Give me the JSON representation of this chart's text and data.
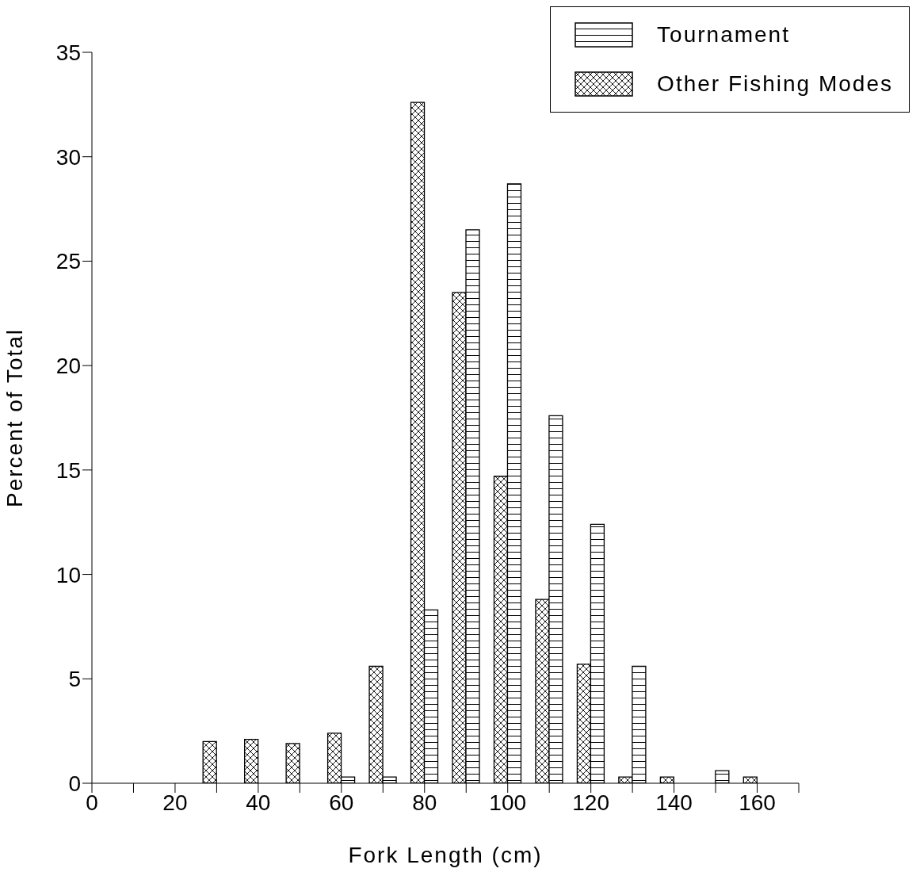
{
  "chart_data": {
    "type": "bar",
    "xlabel": "Fork Length (cm)",
    "ylabel": "Percent of Total",
    "x": [
      30,
      40,
      50,
      60,
      70,
      80,
      90,
      100,
      110,
      120,
      130,
      140,
      150,
      160
    ],
    "series": [
      {
        "name": "Other Fishing Modes",
        "color": "#000000",
        "values": [
          2.0,
          2.1,
          1.9,
          2.4,
          5.6,
          32.6,
          23.5,
          14.7,
          8.8,
          5.7,
          0.3,
          0.3,
          null,
          0.3
        ]
      },
      {
        "name": "Tournament",
        "color": "#000000",
        "values": [
          null,
          null,
          null,
          0.3,
          0.3,
          8.3,
          26.5,
          28.7,
          17.6,
          12.4,
          5.6,
          null,
          0.6,
          null
        ]
      }
    ],
    "xlim": [
      0,
      170
    ],
    "xticks": [
      0,
      {
        "value": 10,
        "label": null
      },
      20,
      {
        "value": 30,
        "label": null
      },
      40,
      {
        "value": 50,
        "label": null
      },
      60,
      {
        "value": 70,
        "label": null
      },
      80,
      {
        "value": 90,
        "label": null
      },
      100,
      {
        "value": 110,
        "label": null
      },
      120,
      {
        "value": 130,
        "label": null
      },
      140,
      {
        "value": 150,
        "label": null
      },
      160,
      {
        "value": 170,
        "label": null
      }
    ],
    "ylim": [
      0,
      35
    ],
    "yticks": [
      0,
      5,
      10,
      15,
      20,
      25,
      30,
      35
    ],
    "grid": false,
    "legend": "top right"
  }
}
